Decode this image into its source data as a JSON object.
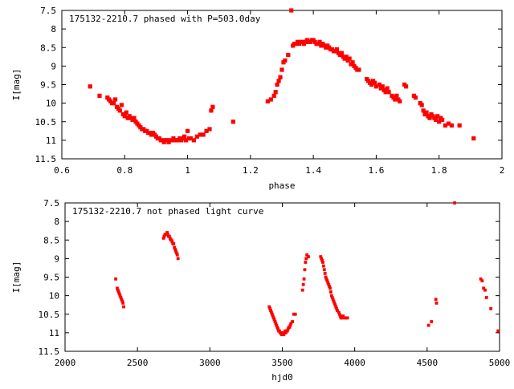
{
  "chart_data": [
    {
      "type": "scatter",
      "title": "175132-2210.7 phased with P=503.0day",
      "xlabel": "phase",
      "ylabel": "I[mag]",
      "xlim": [
        0.6,
        2.0
      ],
      "ylim": [
        11.5,
        7.5
      ],
      "y_inverted": true,
      "xticks": [
        "0.6",
        "0.8",
        "1",
        "1.2",
        "1.4",
        "1.6",
        "1.8",
        "2"
      ],
      "yticks": [
        "7.5",
        "8",
        "8.5",
        "9",
        "9.5",
        "10",
        "10.5",
        "11",
        "11.5"
      ],
      "marker_color": "#ff0000",
      "series": [
        {
          "x": [
            0.69,
            0.72,
            0.745,
            0.75,
            0.755,
            0.76,
            0.765,
            0.77,
            0.775,
            0.78,
            0.785,
            0.79,
            0.795,
            0.8,
            0.805,
            0.81,
            0.815,
            0.82,
            0.825,
            0.83,
            0.835,
            0.84,
            0.845,
            0.85,
            0.855,
            0.86,
            0.865,
            0.87,
            0.875,
            0.88,
            0.885,
            0.89,
            0.895,
            0.9,
            0.905,
            0.91,
            0.915,
            0.92,
            0.925,
            0.93,
            0.935,
            0.94,
            0.945,
            0.95,
            0.955,
            0.96,
            0.965,
            0.97,
            0.975,
            0.98,
            0.985,
            0.99,
            0.995,
            1.0,
            1.005,
            1.01,
            1.02,
            1.03,
            1.04,
            1.05,
            1.06,
            1.07,
            1.075,
            1.08,
            1.145,
            1.255,
            1.265,
            1.275,
            1.28,
            1.285,
            1.29,
            1.295,
            1.3,
            1.305,
            1.31,
            1.32,
            1.33,
            1.335,
            1.34,
            1.345,
            1.35,
            1.355,
            1.36,
            1.365,
            1.37,
            1.375,
            1.38,
            1.385,
            1.39,
            1.395,
            1.4,
            1.405,
            1.41,
            1.415,
            1.42,
            1.425,
            1.43,
            1.435,
            1.44,
            1.445,
            1.45,
            1.455,
            1.46,
            1.465,
            1.47,
            1.475,
            1.48,
            1.485,
            1.49,
            1.495,
            1.5,
            1.505,
            1.51,
            1.515,
            1.52,
            1.525,
            1.53,
            1.535,
            1.54,
            1.545,
            1.57,
            1.575,
            1.58,
            1.585,
            1.59,
            1.595,
            1.6,
            1.61,
            1.615,
            1.62,
            1.625,
            1.63,
            1.635,
            1.64,
            1.65,
            1.655,
            1.66,
            1.665,
            1.67,
            1.675,
            1.69,
            1.695,
            1.72,
            1.725,
            1.74,
            1.745,
            1.75,
            1.755,
            1.76,
            1.765,
            1.77,
            1.775,
            1.78,
            1.785,
            1.79,
            1.795,
            1.8,
            1.805,
            1.81,
            1.82,
            1.83,
            1.84,
            1.865,
            1.91
          ],
          "y": [
            9.55,
            9.8,
            9.85,
            9.9,
            9.95,
            10.0,
            10.0,
            9.9,
            10.1,
            10.15,
            10.2,
            10.05,
            10.3,
            10.35,
            10.25,
            10.4,
            10.35,
            10.4,
            10.45,
            10.4,
            10.5,
            10.55,
            10.6,
            10.65,
            10.7,
            10.7,
            10.75,
            10.75,
            10.8,
            10.8,
            10.85,
            10.8,
            10.85,
            10.9,
            10.95,
            10.95,
            11.0,
            11.0,
            11.05,
            11.0,
            11.0,
            11.05,
            11.0,
            11.0,
            10.95,
            11.0,
            11.0,
            11.0,
            10.95,
            11.0,
            10.95,
            10.9,
            11.0,
            10.75,
            10.95,
            10.95,
            11.0,
            10.9,
            10.85,
            10.85,
            10.75,
            10.7,
            10.2,
            10.1,
            10.5,
            9.95,
            9.9,
            9.8,
            9.7,
            9.5,
            9.4,
            9.3,
            9.1,
            8.9,
            8.85,
            8.7,
            7.5,
            8.45,
            8.4,
            8.4,
            8.35,
            8.4,
            8.35,
            8.35,
            8.4,
            8.35,
            8.3,
            8.35,
            8.35,
            8.3,
            8.3,
            8.35,
            8.4,
            8.4,
            8.35,
            8.45,
            8.4,
            8.45,
            8.5,
            8.45,
            8.5,
            8.55,
            8.55,
            8.6,
            8.6,
            8.55,
            8.65,
            8.7,
            8.65,
            8.75,
            8.8,
            8.75,
            8.85,
            8.8,
            8.95,
            8.9,
            9.0,
            9.05,
            9.1,
            9.1,
            9.35,
            9.4,
            9.45,
            9.5,
            9.4,
            9.45,
            9.55,
            9.5,
            9.6,
            9.55,
            9.65,
            9.7,
            9.6,
            9.7,
            9.8,
            9.85,
            9.9,
            9.8,
            9.9,
            9.95,
            9.5,
            9.55,
            9.8,
            9.85,
            10.0,
            10.05,
            10.2,
            10.3,
            10.25,
            10.35,
            10.4,
            10.3,
            10.35,
            10.4,
            10.45,
            10.35,
            10.5,
            10.4,
            10.45,
            10.6,
            10.55,
            10.6,
            10.6,
            10.95
          ]
        }
      ]
    },
    {
      "type": "scatter",
      "title": "175132-2210.7 not phased light curve",
      "xlabel": "hjd0",
      "ylabel": "I[mag]",
      "xlim": [
        2000,
        5000
      ],
      "ylim": [
        11.5,
        7.5
      ],
      "y_inverted": true,
      "xticks": [
        "2000",
        "2500",
        "3000",
        "3500",
        "4000",
        "4500",
        "5000"
      ],
      "yticks": [
        "7.5",
        "8",
        "8.5",
        "9",
        "9.5",
        "10",
        "10.5",
        "11",
        "11.5"
      ],
      "marker_color": "#ff0000",
      "series": [
        {
          "x": [
            2350,
            2360,
            2365,
            2370,
            2375,
            2380,
            2385,
            2390,
            2395,
            2400,
            2405,
            2680,
            2685,
            2690,
            2695,
            2700,
            2705,
            2710,
            2715,
            2720,
            2725,
            2730,
            2735,
            2740,
            2745,
            2750,
            2755,
            2760,
            2765,
            2770,
            2775,
            2780,
            3410,
            3415,
            3420,
            3425,
            3430,
            3435,
            3440,
            3445,
            3450,
            3455,
            3460,
            3465,
            3470,
            3475,
            3480,
            3485,
            3490,
            3495,
            3500,
            3505,
            3510,
            3515,
            3520,
            3525,
            3530,
            3535,
            3540,
            3545,
            3550,
            3555,
            3560,
            3570,
            3580,
            3590,
            3640,
            3645,
            3650,
            3655,
            3660,
            3665,
            3670,
            3680,
            3765,
            3770,
            3775,
            3780,
            3785,
            3790,
            3795,
            3800,
            3805,
            3810,
            3815,
            3820,
            3825,
            3830,
            3835,
            3840,
            3845,
            3850,
            3855,
            3860,
            3865,
            3870,
            3875,
            3880,
            3890,
            3895,
            3900,
            3905,
            3910,
            3920,
            3930,
            3940,
            3950,
            4510,
            4530,
            4560,
            4565,
            4690,
            4870,
            4880,
            4890,
            4900,
            4910,
            4940,
            4990
          ],
          "y": [
            9.55,
            9.8,
            9.85,
            9.9,
            9.95,
            10.0,
            10.05,
            10.1,
            10.15,
            10.2,
            10.3,
            8.45,
            8.4,
            8.35,
            8.35,
            8.35,
            8.3,
            8.35,
            8.4,
            8.4,
            8.45,
            8.5,
            8.5,
            8.55,
            8.6,
            8.6,
            8.7,
            8.75,
            8.8,
            8.85,
            8.9,
            9.0,
            10.3,
            10.35,
            10.4,
            10.45,
            10.5,
            10.55,
            10.6,
            10.65,
            10.7,
            10.75,
            10.8,
            10.85,
            10.9,
            10.95,
            10.95,
            11.0,
            11.0,
            11.05,
            11.0,
            11.0,
            11.05,
            11.0,
            10.95,
            11.0,
            10.95,
            10.95,
            10.9,
            10.85,
            10.85,
            10.8,
            10.75,
            10.7,
            10.5,
            10.5,
            9.85,
            9.7,
            9.55,
            9.3,
            9.1,
            9.0,
            8.9,
            8.95,
            8.95,
            9.0,
            9.05,
            9.1,
            9.2,
            9.3,
            9.4,
            9.5,
            9.55,
            9.6,
            9.65,
            9.7,
            9.75,
            9.8,
            9.9,
            10.0,
            10.05,
            10.1,
            10.15,
            10.2,
            10.25,
            10.3,
            10.35,
            10.4,
            10.45,
            10.5,
            10.55,
            10.6,
            10.6,
            10.55,
            10.6,
            10.6,
            10.6,
            10.8,
            10.7,
            10.1,
            10.2,
            7.5,
            9.55,
            9.6,
            9.8,
            9.85,
            10.05,
            10.35,
            10.95
          ]
        }
      ]
    }
  ]
}
